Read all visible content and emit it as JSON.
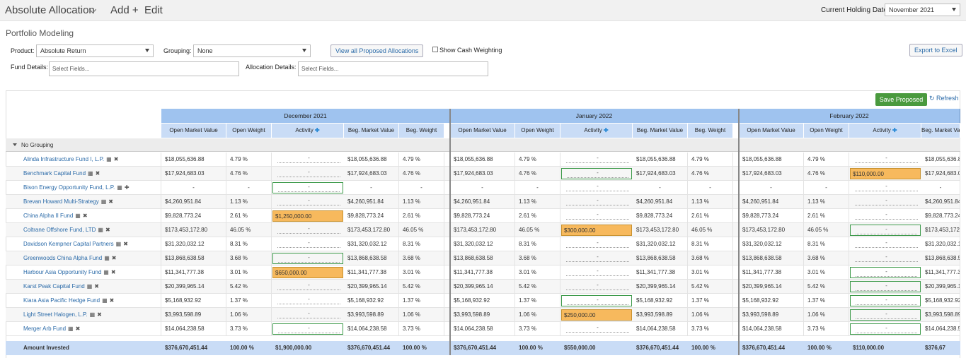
{
  "topbar": {
    "title": "Absolute Allocation",
    "add_label": "Add +",
    "edit_label": "Edit",
    "holding_date_label": "Current Holding Date:",
    "holding_date_value": "November 2021"
  },
  "page_title": "Portfolio Modeling",
  "filters": {
    "product_label": "Product:",
    "product_value": "Absolute Return",
    "grouping_label": "Grouping:",
    "grouping_value": "None",
    "view_all_button": "View all Proposed Allocations",
    "cash_weighting_label": "Show Cash Weighting",
    "export_button": "Export to Excel",
    "fund_details_label": "Fund Details:",
    "fund_details_placeholder": "Select Fields...",
    "allocation_details_label": "Allocation Details:",
    "allocation_details_placeholder": "Select Fields..."
  },
  "toolbar": {
    "save_button": "Save Proposed",
    "refresh_label": "Refresh"
  },
  "months": [
    "December 2021",
    "January 2022",
    "February 2022"
  ],
  "columns": [
    "Open Market Value",
    "Open Weight",
    "Activity",
    "Beg. Market Value",
    "Beg. Weight"
  ],
  "group_label": "No Grouping",
  "funds": [
    {
      "name": "Alinda Infrastructure Fund I, L.P.",
      "mv": "$18,055,636.88",
      "w": "4.79 %",
      "icon2": "✖",
      "act": [
        "",
        "",
        ""
      ]
    },
    {
      "name": "Benchmark Capital Fund",
      "mv": "$17,924,683.03",
      "w": "4.76 %",
      "icon2": "✖",
      "act": [
        "",
        "",
        "$110,000.00"
      ]
    },
    {
      "name": "Bison Energy Opportunity Fund, L.P.",
      "mv": "-",
      "w": "-",
      "icon2": "✚",
      "act": [
        "",
        "",
        ""
      ]
    },
    {
      "name": "Brevan Howard Multi-Strategy",
      "mv": "$4,260,951.84",
      "w": "1.13 %",
      "icon2": "✖",
      "act": [
        "",
        "",
        ""
      ]
    },
    {
      "name": "China Alpha II Fund",
      "mv": "$9,828,773.24",
      "w": "2.61 %",
      "icon2": "✖",
      "act": [
        "$1,250,000.00",
        "",
        ""
      ]
    },
    {
      "name": "Coltrane Offshore Fund, LTD",
      "mv": "$173,453,172.80",
      "w": "46.05 %",
      "icon2": "✖",
      "act": [
        "",
        "$300,000.00",
        ""
      ]
    },
    {
      "name": "Davidson Kempner Capital Partners",
      "mv": "$31,320,032.12",
      "w": "8.31 %",
      "icon2": "✖",
      "act": [
        "",
        "",
        ""
      ]
    },
    {
      "name": "Greenwoods China Alpha Fund",
      "mv": "$13,868,638.58",
      "w": "3.68 %",
      "icon2": "✖",
      "act": [
        "",
        "",
        ""
      ]
    },
    {
      "name": "Harbour Asia Opportunity Fund",
      "mv": "$11,341,777.38",
      "w": "3.01 %",
      "icon2": "✖",
      "act": [
        "$650,000.00",
        "",
        ""
      ]
    },
    {
      "name": "Karst Peak Capital Fund",
      "mv": "$20,399,965.14",
      "w": "5.42 %",
      "icon2": "✖",
      "act": [
        "",
        "",
        ""
      ]
    },
    {
      "name": "Kiara Asia Pacific Hedge Fund",
      "mv": "$5,168,932.92",
      "w": "1.37 %",
      "icon2": "✖",
      "act": [
        "",
        "",
        ""
      ]
    },
    {
      "name": "Light Street Halogen, L.P.",
      "mv": "$3,993,598.89",
      "w": "1.06 %",
      "icon2": "✖",
      "act": [
        "",
        "$250,000.00",
        ""
      ]
    },
    {
      "name": "Merger Arb Fund",
      "mv": "$14,064,238.58",
      "w": "3.73 %",
      "icon2": "✖",
      "act": [
        "",
        "",
        ""
      ]
    }
  ],
  "totals": {
    "label": "Amount Invested",
    "mv": "$376,670,451.44",
    "w": "100.00 %",
    "activity": [
      "$1,900,000.00",
      "$550,000.00",
      "$110,000.00"
    ],
    "last_partial": "$376,67"
  },
  "empty_activity": "-"
}
